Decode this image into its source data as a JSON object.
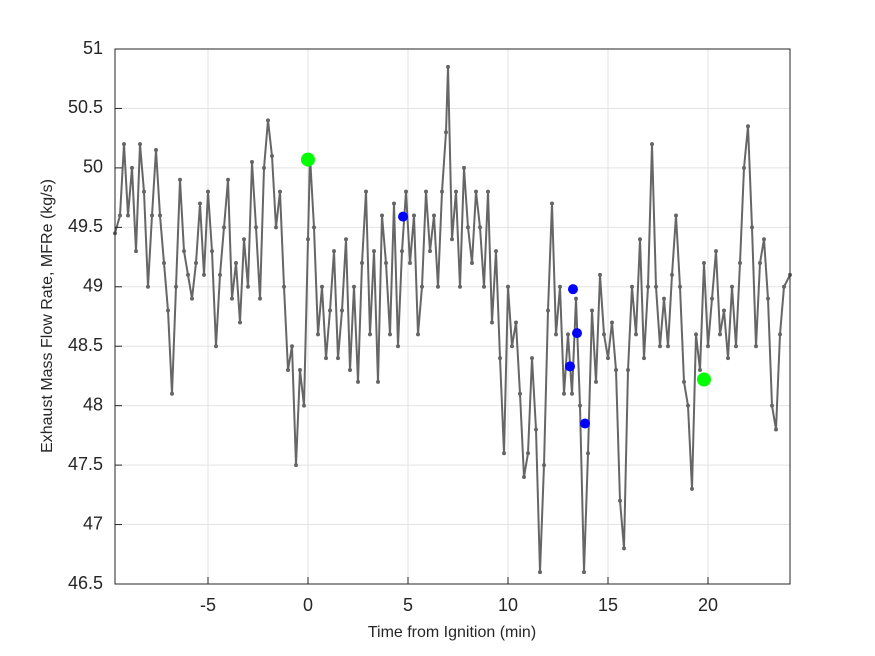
{
  "chart_data": {
    "type": "line",
    "xlabel": "Time from Ignition (min)",
    "ylabel": "Exhaust Mass Flow Rate, MFRe (kg/s)",
    "xlim": [
      -9.65,
      24.1
    ],
    "ylim": [
      46.5,
      51
    ],
    "xticks": [
      -5,
      0,
      5,
      10,
      15,
      20
    ],
    "yticks": [
      46.5,
      47,
      47.5,
      48,
      48.5,
      49,
      49.5,
      50,
      50.5,
      51
    ],
    "grid": true,
    "series": [
      {
        "color": "#666666",
        "line": true,
        "marker_size": 2,
        "x": [
          -9.65,
          -9.4,
          -9.2,
          -9.0,
          -8.8,
          -8.6,
          -8.4,
          -8.2,
          -8.0,
          -7.8,
          -7.6,
          -7.4,
          -7.2,
          -7.0,
          -6.8,
          -6.6,
          -6.4,
          -6.2,
          -6.0,
          -5.8,
          -5.6,
          -5.4,
          -5.2,
          -5.0,
          -4.8,
          -4.6,
          -4.4,
          -4.2,
          -4.0,
          -3.8,
          -3.6,
          -3.4,
          -3.2,
          -3.0,
          -2.8,
          -2.6,
          -2.4,
          -2.2,
          -2.0,
          -1.8,
          -1.6,
          -1.4,
          -1.2,
          -1.0,
          -0.8,
          -0.6,
          -0.4,
          -0.2,
          0.0,
          0.1,
          0.3,
          0.5,
          0.7,
          0.9,
          1.1,
          1.3,
          1.5,
          1.7,
          1.9,
          2.1,
          2.3,
          2.5,
          2.7,
          2.9,
          3.1,
          3.3,
          3.5,
          3.7,
          3.9,
          4.1,
          4.3,
          4.5,
          4.7,
          4.9,
          5.1,
          5.3,
          5.5,
          5.7,
          5.9,
          6.1,
          6.3,
          6.5,
          6.7,
          6.9,
          7.0,
          7.2,
          7.4,
          7.6,
          7.8,
          8.0,
          8.2,
          8.4,
          8.6,
          8.8,
          9.0,
          9.2,
          9.4,
          9.6,
          9.8,
          10.0,
          10.2,
          10.4,
          10.6,
          10.8,
          11.0,
          11.2,
          11.4,
          11.6,
          11.8,
          12.0,
          12.2,
          12.4,
          12.6,
          12.8,
          13.0,
          13.2,
          13.4,
          13.6,
          13.8,
          14.0,
          14.2,
          14.4,
          14.6,
          14.8,
          15.0,
          15.2,
          15.4,
          15.6,
          15.8,
          16.0,
          16.2,
          16.4,
          16.6,
          16.8,
          17.0,
          17.2,
          17.4,
          17.6,
          17.8,
          18.0,
          18.2,
          18.4,
          18.6,
          18.8,
          19.0,
          19.2,
          19.4,
          19.6,
          19.8,
          20.0,
          20.2,
          20.4,
          20.6,
          20.8,
          21.0,
          21.2,
          21.4,
          21.6,
          21.8,
          22.0,
          22.2,
          22.4,
          22.6,
          22.8,
          23.0,
          23.2,
          23.4,
          23.6,
          23.8,
          24.1
        ],
        "values": [
          49.45,
          49.6,
          50.2,
          49.6,
          50.0,
          49.3,
          50.2,
          49.8,
          49.0,
          49.6,
          50.15,
          49.6,
          49.2,
          48.8,
          48.1,
          49.0,
          49.9,
          49.3,
          49.1,
          48.9,
          49.2,
          49.7,
          49.1,
          49.8,
          49.3,
          48.5,
          49.1,
          49.5,
          49.9,
          48.9,
          49.2,
          48.7,
          49.4,
          49.0,
          50.05,
          49.5,
          48.9,
          50.0,
          50.4,
          50.1,
          49.5,
          49.8,
          49.0,
          48.3,
          48.5,
          47.5,
          48.3,
          48.0,
          49.4,
          50.1,
          49.5,
          48.6,
          49.0,
          48.4,
          48.8,
          49.3,
          48.4,
          48.8,
          49.4,
          48.3,
          49.0,
          48.2,
          49.2,
          49.8,
          48.6,
          49.3,
          48.2,
          49.6,
          49.2,
          48.6,
          49.7,
          48.5,
          49.3,
          49.8,
          49.2,
          49.6,
          48.6,
          49.0,
          49.8,
          49.3,
          49.6,
          49.0,
          49.8,
          50.3,
          50.85,
          49.4,
          49.8,
          49.0,
          50.0,
          49.5,
          49.2,
          49.8,
          49.5,
          49.0,
          49.8,
          48.7,
          49.3,
          48.4,
          47.6,
          49.0,
          48.5,
          48.7,
          48.1,
          47.4,
          47.6,
          48.4,
          47.8,
          46.6,
          47.5,
          48.8,
          49.7,
          48.6,
          49.0,
          48.1,
          48.6,
          48.1,
          48.9,
          48.0,
          46.6,
          47.6,
          48.8,
          48.2,
          49.1,
          48.6,
          48.4,
          48.7,
          48.3,
          47.2,
          46.8,
          48.3,
          49.0,
          48.6,
          49.4,
          48.4,
          49.0,
          50.2,
          49.0,
          48.5,
          48.9,
          48.5,
          49.1,
          49.6,
          49.0,
          48.2,
          48.0,
          47.3,
          48.6,
          48.3,
          49.2,
          48.5,
          48.9,
          49.3,
          48.6,
          48.8,
          48.4,
          49.0,
          48.5,
          49.2,
          50.0,
          50.35,
          49.5,
          48.5,
          49.2,
          49.4,
          48.9,
          48.0,
          47.8,
          48.6,
          49.0,
          49.1
        ]
      },
      {
        "color": "#0000ff",
        "line": false,
        "marker_size": 5,
        "x": [
          4.75,
          13.25,
          13.45,
          13.1,
          13.85
        ],
        "values": [
          49.59,
          48.98,
          48.61,
          48.33,
          47.85
        ]
      },
      {
        "color": "#00ff00",
        "line": false,
        "marker_size": 7,
        "x": [
          0,
          19.8
        ],
        "values": [
          50.07,
          48.22
        ]
      }
    ]
  }
}
